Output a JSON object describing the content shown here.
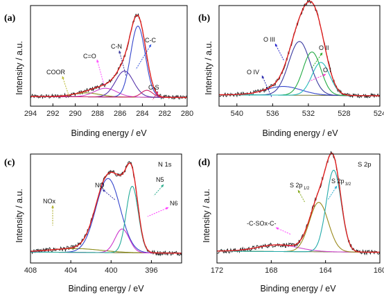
{
  "chart_data": [
    {
      "type": "line",
      "panel": "(a)",
      "title": "",
      "xlabel": "Binding energy / eV",
      "ylabel": "Intensity / a.u.",
      "xlim": [
        294,
        280
      ],
      "x_reversed": true,
      "xticks": [
        294,
        292,
        290,
        288,
        286,
        284,
        282,
        280
      ],
      "background": 0.02,
      "components": [
        {
          "name": "COOR",
          "center": 289.0,
          "height": 0.045,
          "width": 1.2,
          "color": "#8c8c1a",
          "arrow": "#b8b82a"
        },
        {
          "name": "C=O",
          "center": 287.3,
          "height": 0.1,
          "width": 1.0,
          "color": "#cc44cc",
          "arrow": "#ff44ff"
        },
        {
          "name": "C-N",
          "center": 285.6,
          "height": 0.3,
          "width": 0.8,
          "color": "#5533aa",
          "arrow": "#333399"
        },
        {
          "name": "C-C",
          "center": 284.4,
          "height": 0.82,
          "width": 0.65,
          "color": "#3344cc",
          "arrow": "#3355dd"
        },
        {
          "name": "C-S",
          "center": 283.6,
          "height": 0.08,
          "width": 0.5,
          "color": "#cc2266",
          "arrow": "#dd2266"
        }
      ]
    },
    {
      "type": "line",
      "panel": "(b)",
      "title": "",
      "xlabel": "Binding energy / eV",
      "ylabel": "Intensity / a.u.",
      "xlim": [
        542,
        524
      ],
      "x_reversed": true,
      "xticks": [
        540,
        536,
        532,
        528,
        524
      ],
      "background": 0.04,
      "components": [
        {
          "name": "O IV",
          "center": 534.8,
          "height": 0.1,
          "width": 2.0,
          "color": "#3344cc",
          "arrow": "#2222aa"
        },
        {
          "name": "O III",
          "center": 533.0,
          "height": 0.62,
          "width": 1.2,
          "color": "#3a3aa0",
          "arrow": "#2222cc"
        },
        {
          "name": "O II",
          "center": 531.6,
          "height": 0.5,
          "width": 1.0,
          "color": "#22aa44",
          "arrow": "#22aa22"
        },
        {
          "name": "O I",
          "center": 530.6,
          "height": 0.38,
          "width": 1.0,
          "color": "#22bbbb",
          "arrow": "#ff33cc"
        }
      ]
    },
    {
      "type": "line",
      "panel": "(c)",
      "title": "N 1s",
      "xlabel": "Binding energy / eV",
      "ylabel": "Intensity / a.u.",
      "xlim": [
        408,
        393
      ],
      "x_reversed": true,
      "xticks": [
        408,
        404,
        400,
        396
      ],
      "background": 0.03,
      "components": [
        {
          "name": "NOx",
          "center": 403.5,
          "height": 0.04,
          "width": 2.5,
          "color": "#8c8c1a",
          "arrow": "#aaaa22"
        },
        {
          "name": "NQ",
          "center": 400.3,
          "height": 0.78,
          "width": 1.2,
          "color": "#3344cc",
          "arrow": "#3333aa"
        },
        {
          "name": "N6",
          "center": 398.9,
          "height": 0.25,
          "width": 0.7,
          "color": "#cc33cc",
          "arrow": "#ff33ff"
        },
        {
          "name": "N5",
          "center": 397.9,
          "height": 0.7,
          "width": 0.6,
          "color": "#22aa99",
          "arrow": "#22aa88"
        }
      ]
    },
    {
      "type": "line",
      "panel": "(d)",
      "title": "S 2p",
      "xlabel": "Binding energy / eV",
      "ylabel": "Intensity / a.u.",
      "xlim": [
        172,
        160
      ],
      "x_reversed": true,
      "xticks": [
        172,
        168,
        164,
        160
      ],
      "background": 0.04,
      "components": [
        {
          "name": "-C-SOx-C-",
          "center": 167.5,
          "height": 0.07,
          "width": 1.5,
          "color": "#cc44cc",
          "arrow": "#ff44ff"
        },
        {
          "name": "S 2p1/2",
          "center": 164.5,
          "height": 0.52,
          "width": 0.7,
          "color": "#99881a",
          "arrow": "#88aa22"
        },
        {
          "name": "S 2p3/2",
          "center": 163.4,
          "height": 0.86,
          "width": 0.55,
          "color": "#22aaaa",
          "arrow": "#22aacc"
        }
      ]
    }
  ]
}
